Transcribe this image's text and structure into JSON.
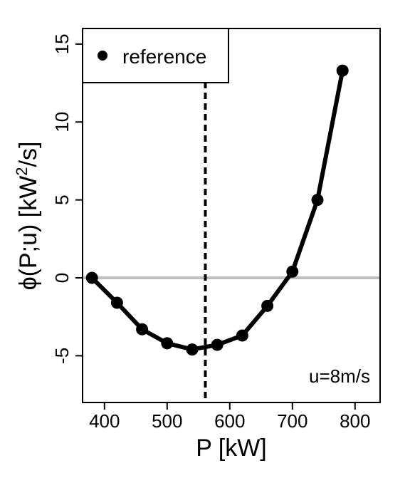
{
  "chart_data": {
    "type": "line",
    "xlabel": "P [kW]",
    "ylabel": {
      "prefix": "ϕ(P;u) [kW",
      "superscript": "2",
      "suffix": "/s]"
    },
    "xlim": [
      365,
      840
    ],
    "ylim": [
      -8,
      16
    ],
    "xticks": [
      400,
      500,
      600,
      700,
      800
    ],
    "yticks": [
      -5,
      0,
      5,
      10,
      15
    ],
    "series": [
      {
        "name": "reference",
        "x": [
          380,
          420,
          460,
          500,
          540,
          580,
          620,
          660,
          700,
          740,
          780
        ],
        "y": [
          0.0,
          -1.6,
          -3.3,
          -4.2,
          -4.6,
          -4.3,
          -3.7,
          -1.8,
          0.4,
          5.0,
          13.3
        ],
        "color": "#000000",
        "marker": "filled-circle"
      }
    ],
    "reference_lines": [
      {
        "orientation": "horizontal",
        "value": 0,
        "color": "#bebebe",
        "style": "solid"
      },
      {
        "orientation": "vertical",
        "value": 561,
        "color": "#000000",
        "style": "dashed"
      }
    ],
    "legend": {
      "position": "top-left",
      "entries": [
        "reference"
      ]
    },
    "annotation": "u=8m/s",
    "grid": false
  }
}
